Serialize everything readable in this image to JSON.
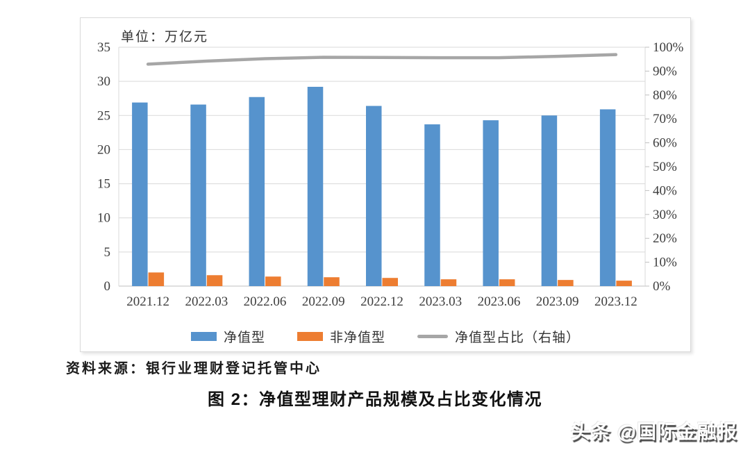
{
  "chart": {
    "unit_label": "单位：万亿元",
    "source": "资料来源：银行业理财登记托管中心",
    "caption": "图 2：净值型理财产品规模及占比变化情况",
    "watermark": "头条 @国际金融报"
  },
  "chart_data": {
    "type": "bar",
    "subtype": "grouped bars with secondary-axis line (combo chart)",
    "title": "图 2：净值型理财产品规模及占比变化情况",
    "unit_label": "单位：万亿元",
    "categories": [
      "2021.12",
      "2022.03",
      "2022.06",
      "2022.09",
      "2022.12",
      "2023.03",
      "2023.06",
      "2023.09",
      "2023.12"
    ],
    "series": [
      {
        "name": "净值型",
        "type": "bar",
        "axis": "left",
        "color": "#5693CD",
        "values": [
          26.9,
          26.6,
          27.7,
          29.2,
          26.4,
          23.7,
          24.3,
          25.0,
          25.9
        ]
      },
      {
        "name": "非净值型",
        "type": "bar",
        "axis": "left",
        "color": "#ED7D31",
        "values": [
          2.0,
          1.6,
          1.4,
          1.3,
          1.2,
          1.0,
          1.0,
          0.9,
          0.8
        ]
      },
      {
        "name": "净值型占比（右轴）",
        "type": "line",
        "axis": "right",
        "color": "#A6A6A6",
        "values": [
          92.9,
          94.2,
          95.2,
          95.8,
          95.7,
          95.6,
          95.6,
          96.2,
          96.9
        ]
      }
    ],
    "left_axis": {
      "min": 0,
      "max": 35,
      "step": 5,
      "ticks": [
        "0",
        "5",
        "10",
        "15",
        "20",
        "25",
        "30",
        "35"
      ]
    },
    "right_axis": {
      "min": 0,
      "max": 100,
      "step": 10,
      "ticks": [
        "0%",
        "10%",
        "20%",
        "30%",
        "40%",
        "50%",
        "60%",
        "70%",
        "80%",
        "90%",
        "100%"
      ]
    },
    "grid": "horizontal major gridlines on",
    "legend_position": "bottom",
    "colors": {
      "grid": "#d9d9d9",
      "axis": "#bfbfbf",
      "tick_text": "#3d3d3d"
    }
  }
}
